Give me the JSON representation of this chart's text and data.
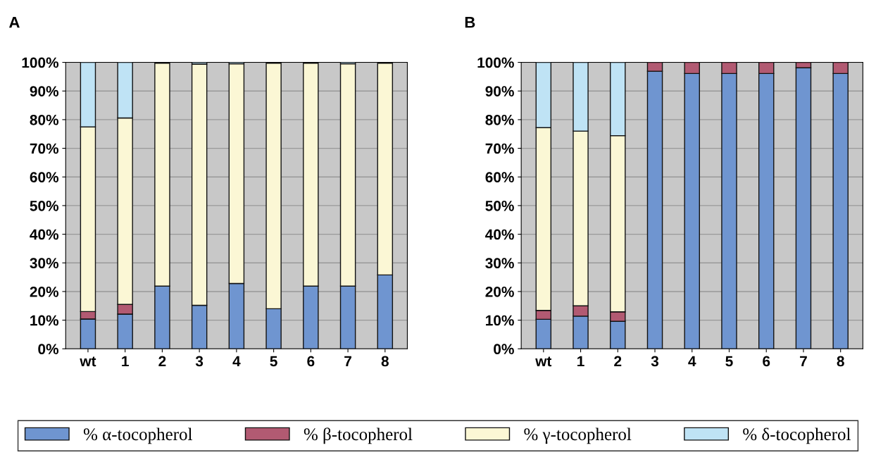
{
  "chart_data": [
    {
      "type": "bar",
      "title": "A",
      "stacked": true,
      "grid": "y",
      "legend": "bottom",
      "categories": [
        "wt",
        "1",
        "2",
        "3",
        "4",
        "5",
        "6",
        "7",
        "8"
      ],
      "ylim": [
        0,
        100
      ],
      "yticks": [
        {
          "value": 0,
          "label": "0%"
        },
        {
          "value": 10,
          "label": "10%"
        },
        {
          "value": 20,
          "label": "20%"
        },
        {
          "value": 30,
          "label": "30%"
        },
        {
          "value": 40,
          "label": "40%"
        },
        {
          "value": 50,
          "label": "50%"
        },
        {
          "value": 60,
          "label": "60%"
        },
        {
          "value": 70,
          "label": "70%"
        },
        {
          "value": 80,
          "label": "80%"
        },
        {
          "value": 90,
          "label": "90%"
        },
        {
          "value": 100,
          "label": "100%"
        }
      ],
      "series": [
        {
          "name": "% α-tocopherol",
          "color": "#6f95d0",
          "values": [
            10.4,
            12.1,
            21.9,
            15.2,
            22.8,
            14.0,
            21.9,
            21.9,
            25.8
          ]
        },
        {
          "name": "% β-tocopherol",
          "color": "#b25a72",
          "values": [
            2.6,
            3.4,
            0,
            0,
            0,
            0,
            0,
            0,
            0
          ]
        },
        {
          "name": "% γ-tocopherol",
          "color": "#fbf7d5",
          "values": [
            64.5,
            65.1,
            77.8,
            84.2,
            76.7,
            85.7,
            77.8,
            77.6,
            73.9
          ]
        },
        {
          "name": "% δ-tocopherol",
          "color": "#bfe3f5",
          "values": [
            22.5,
            19.4,
            null,
            0.6,
            0.5,
            null,
            null,
            0.5,
            null
          ]
        }
      ]
    },
    {
      "type": "bar",
      "title": "B",
      "stacked": true,
      "grid": "y",
      "categories": [
        "wt",
        "1",
        "2",
        "3",
        "4",
        "5",
        "6",
        "7",
        "8"
      ],
      "ylim": [
        0,
        100
      ],
      "yticks": [
        {
          "value": 0,
          "label": "0%"
        },
        {
          "value": 10,
          "label": "10%"
        },
        {
          "value": 20,
          "label": "20%"
        },
        {
          "value": 30,
          "label": "30%"
        },
        {
          "value": 40,
          "label": "40%"
        },
        {
          "value": 50,
          "label": "50%"
        },
        {
          "value": 60,
          "label": "60%"
        },
        {
          "value": 70,
          "label": "70%"
        },
        {
          "value": 80,
          "label": "80%"
        },
        {
          "value": 90,
          "label": "90%"
        },
        {
          "value": 100,
          "label": "100%"
        }
      ],
      "series": [
        {
          "color": "#6f95d0",
          "values": [
            10.3,
            11.4,
            9.6,
            96.9,
            96.1,
            96.1,
            96.1,
            98.1,
            96.1
          ]
        },
        {
          "color": "#b25a72",
          "values": [
            3.1,
            3.6,
            3.3,
            3.1,
            3.9,
            3.9,
            3.9,
            1.9,
            3.9
          ]
        },
        {
          "color": "#fbf7d5",
          "values": [
            63.8,
            61.0,
            61.5,
            0,
            0,
            0,
            0,
            0,
            0
          ]
        },
        {
          "color": "#bfe3f5",
          "values": [
            22.8,
            24.0,
            25.6,
            0,
            0,
            0,
            0,
            0,
            0
          ]
        }
      ]
    }
  ]
}
